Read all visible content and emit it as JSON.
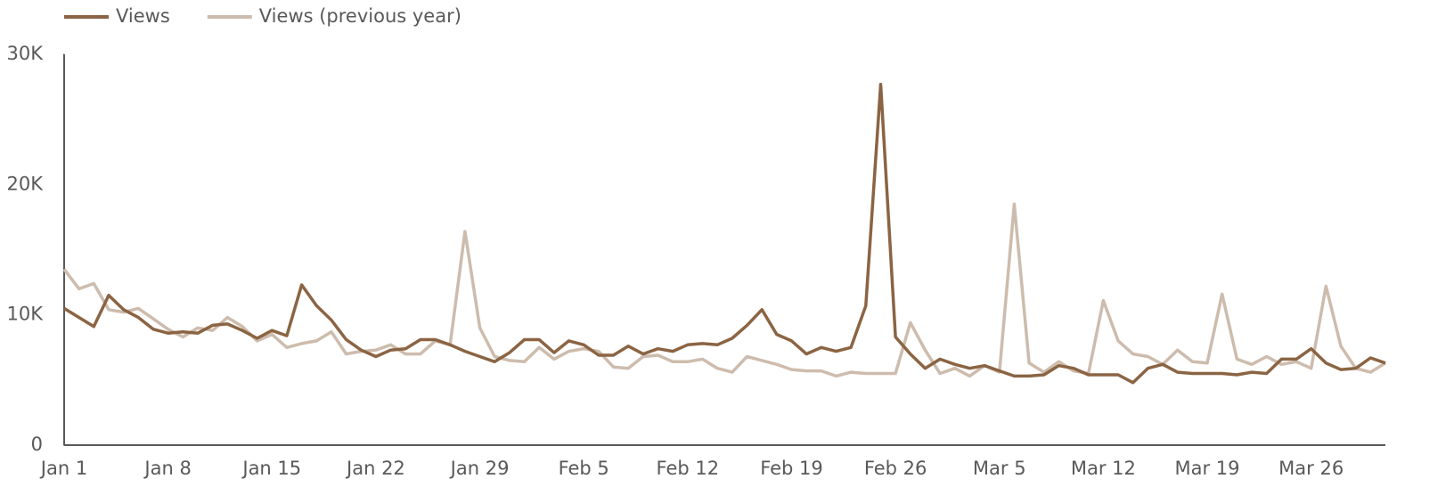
{
  "chart_data": {
    "type": "line",
    "categories": [
      "Jan 1",
      null,
      null,
      null,
      null,
      null,
      null,
      "Jan 8",
      null,
      null,
      null,
      null,
      null,
      null,
      "Jan 15",
      null,
      null,
      null,
      null,
      null,
      null,
      "Jan 22",
      null,
      null,
      null,
      null,
      null,
      null,
      "Jan 29",
      null,
      null,
      null,
      null,
      null,
      null,
      "Feb 5",
      null,
      null,
      null,
      null,
      null,
      null,
      "Feb 12",
      null,
      null,
      null,
      null,
      null,
      null,
      "Feb 19",
      null,
      null,
      null,
      null,
      null,
      null,
      "Feb 26",
      null,
      null,
      null,
      null,
      null,
      null,
      "Mar 5",
      null,
      null,
      null,
      null,
      null,
      null,
      "Mar 12",
      null,
      null,
      null,
      null,
      null,
      null,
      "Mar 19",
      null,
      null,
      null,
      null,
      null,
      null,
      "Mar 26",
      null,
      null,
      null,
      null,
      null
    ],
    "series": [
      {
        "name": "Views",
        "color": "#8b6443",
        "values": [
          10500,
          9800,
          9100,
          11500,
          10400,
          9800,
          8900,
          8600,
          8700,
          8600,
          9200,
          9300,
          8800,
          8200,
          8800,
          8400,
          12300,
          10700,
          9600,
          8100,
          7300,
          6800,
          7300,
          7400,
          8100,
          8100,
          7700,
          7200,
          6800,
          6400,
          7100,
          8100,
          8100,
          7100,
          8000,
          7700,
          6900,
          6900,
          7600,
          7000,
          7400,
          7200,
          7700,
          7800,
          7700,
          8200,
          9200,
          10400,
          8500,
          8000,
          7000,
          7500,
          7200,
          7500,
          10700,
          27700,
          8300,
          7000,
          5900,
          6600,
          6200,
          5900,
          6100,
          5700,
          5300,
          5300,
          5400,
          6100,
          5900,
          5400,
          5400,
          5400,
          4800,
          5900,
          6200,
          5600,
          5500,
          5500,
          5500,
          5400,
          5600,
          5500,
          6600,
          6600,
          7400,
          6300,
          5800,
          5900,
          6700,
          6300
        ]
      },
      {
        "name": "Views (previous year)",
        "color": "#cdbcad",
        "values": [
          13500,
          12000,
          12400,
          10400,
          10200,
          10500,
          9700,
          8900,
          8300,
          9000,
          8800,
          9800,
          9100,
          8000,
          8500,
          7500,
          7800,
          8000,
          8700,
          7000,
          7200,
          7300,
          7700,
          7000,
          7000,
          8000,
          7700,
          16400,
          9000,
          6800,
          6500,
          6400,
          7500,
          6600,
          7200,
          7400,
          7200,
          6000,
          5900,
          6800,
          6900,
          6400,
          6400,
          6600,
          5900,
          5600,
          6800,
          6500,
          6200,
          5800,
          5700,
          5700,
          5300,
          5600,
          5500,
          5500,
          5500,
          9400,
          7300,
          5500,
          5900,
          5300,
          6100,
          5600,
          18500,
          6300,
          5600,
          6400,
          5700,
          5500,
          11100,
          8000,
          7000,
          6800,
          6200,
          7300,
          6400,
          6300,
          11600,
          6600,
          6200,
          6800,
          6200,
          6400,
          5900,
          12200,
          7600,
          5900,
          5600,
          6300
        ]
      }
    ],
    "ylim": [
      0,
      30000
    ],
    "yticks": [
      0,
      {
        "value": 10000,
        "label": "10K"
      },
      {
        "value": 20000,
        "label": "20K"
      },
      {
        "value": 30000,
        "label": "30K"
      }
    ],
    "grid": false,
    "legend": "top-left"
  }
}
